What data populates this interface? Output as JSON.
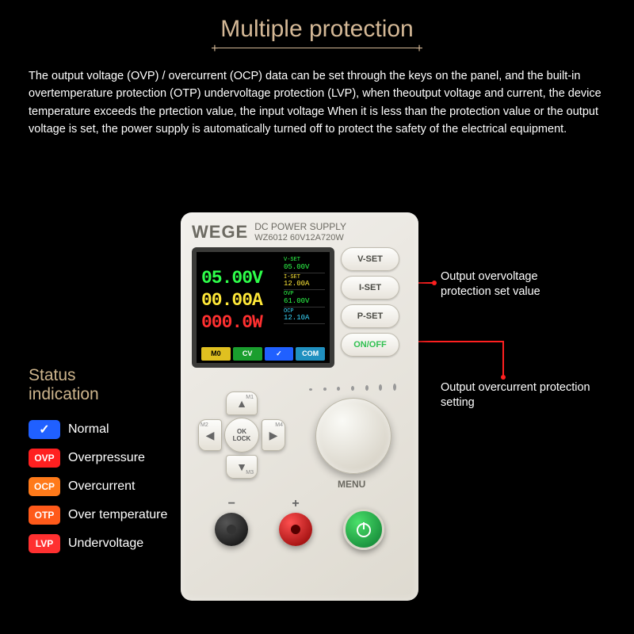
{
  "title": "Multiple protection",
  "description": "The output voltage (OVP) / overcurrent (OCP) data can be set through the keys on the panel, and the built-in overtemperature protection (OTP) undervoltage protection (LVP), when theoutput voltage and current, the device temperature exceeds the prtection value, the input voltage When it is less than the protection value or the output voltage is set, the power supply is automatically turned off to protect the safety of the electrical equipment.",
  "device": {
    "brand": "WEGE",
    "product_line1": "DC POWER SUPPLY",
    "product_line2": "WZ6012  60V12A720W",
    "screen": {
      "voltage": "05.00V",
      "current": "00.00A",
      "power": "000.0W",
      "vset_label": "V-SET",
      "vset_val": "05.00V",
      "iset_label": "I-SET",
      "iset_val": "12.00A",
      "ovp_label": "OVP",
      "ovp_val": "61.00V",
      "ocp_label": "OCP",
      "ocp_val": "12.10A",
      "status": [
        "M0",
        "CV",
        "✓",
        "COM"
      ]
    },
    "buttons": {
      "vset": "V-SET",
      "iset": "I-SET",
      "pset": "P-SET",
      "onoff": "ON/OFF"
    },
    "dpad": {
      "m1": "M1",
      "m2": "M2",
      "m3": "M3",
      "m4": "M4",
      "ok": "OK",
      "lock": "LOCK"
    },
    "menu_label": "MENU"
  },
  "callouts": {
    "c1": "Output overvoltage protection set value",
    "c2": "Output overcurrent protection setting"
  },
  "status_heading": "Status\nindication",
  "legend": [
    {
      "badge": "✓",
      "cls": "b-check",
      "label": "Normal"
    },
    {
      "badge": "OVP",
      "cls": "b-ovp",
      "label": "Overpressure"
    },
    {
      "badge": "OCP",
      "cls": "b-ocp",
      "label": "Overcurrent"
    },
    {
      "badge": "OTP",
      "cls": "b-otp",
      "label": "Over temperature"
    },
    {
      "badge": "LVP",
      "cls": "b-lvp",
      "label": "Undervoltage"
    }
  ],
  "colors": {
    "title": "#d4b896",
    "callout_line": "#ff2020",
    "screen_green": "#2eff4a",
    "screen_yellow": "#ffe838",
    "screen_red": "#ff3030",
    "screen_cyan": "#3ad9ff"
  }
}
